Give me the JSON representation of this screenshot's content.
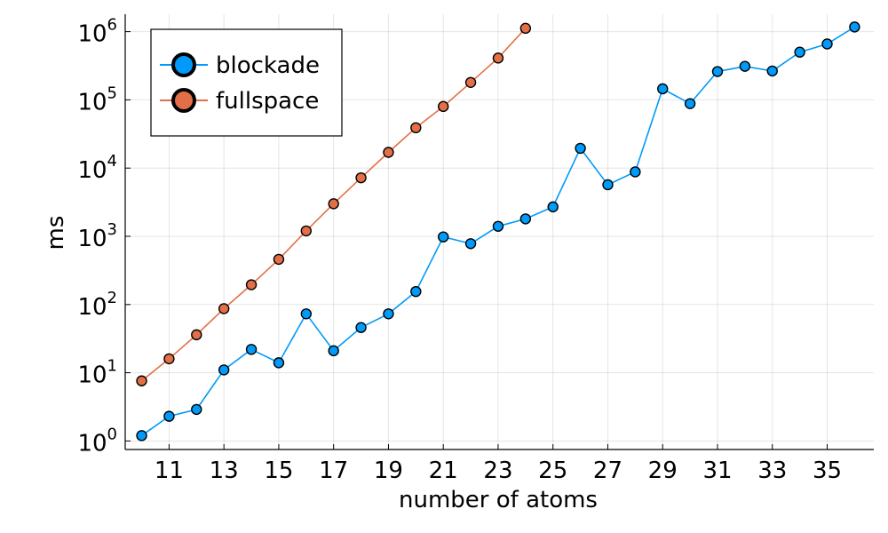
{
  "chart_data": {
    "type": "line",
    "xlabel": "number of atoms",
    "ylabel": "ms",
    "xlim": [
      9.4,
      36.7
    ],
    "ylim": [
      0.75,
      1800000
    ],
    "y_scale": "log",
    "grid": true,
    "legend_position": "top-left",
    "x_ticks": [
      11,
      13,
      15,
      17,
      19,
      21,
      23,
      25,
      27,
      29,
      31,
      33,
      35
    ],
    "y_ticks": [
      {
        "value": 1,
        "base": "10",
        "exp": "0"
      },
      {
        "value": 10,
        "base": "10",
        "exp": "1"
      },
      {
        "value": 100,
        "base": "10",
        "exp": "2"
      },
      {
        "value": 1000,
        "base": "10",
        "exp": "3"
      },
      {
        "value": 10000,
        "base": "10",
        "exp": "4"
      },
      {
        "value": 100000,
        "base": "10",
        "exp": "5"
      },
      {
        "value": 1000000,
        "base": "10",
        "exp": "6"
      }
    ],
    "series": [
      {
        "name": "blockade",
        "color": "#009AFA",
        "x": [
          10,
          11,
          12,
          13,
          14,
          15,
          16,
          17,
          18,
          19,
          20,
          21,
          22,
          23,
          24,
          25,
          26,
          27,
          28,
          29,
          30,
          31,
          32,
          33,
          34,
          35,
          36
        ],
        "y": [
          1.2,
          2.3,
          2.9,
          11,
          22,
          14,
          73,
          21,
          46,
          73,
          155,
          980,
          780,
          1400,
          1800,
          2700,
          19500,
          5700,
          8800,
          145000,
          88000,
          260000,
          310000,
          265000,
          500000,
          660000,
          1170000
        ]
      },
      {
        "name": "fullspace",
        "color": "#E36F47",
        "x": [
          10,
          11,
          12,
          13,
          14,
          15,
          16,
          17,
          18,
          19,
          20,
          21,
          22,
          23,
          24
        ],
        "y": [
          7.6,
          16,
          36,
          87,
          195,
          460,
          1200,
          3000,
          7200,
          17000,
          39000,
          80000,
          180000,
          410000,
          1120000
        ]
      }
    ]
  }
}
